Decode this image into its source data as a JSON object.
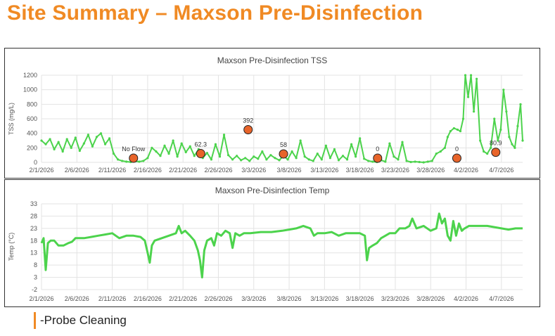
{
  "page": {
    "title": "Site Summary – Maxson Pre-Disinfection",
    "legend_text": "-Probe Cleaning"
  },
  "colors": {
    "title": "#F08A24",
    "series": "#4CD34C",
    "marker_fill": "#E8642A",
    "marker_stroke": "#222222",
    "grid": "#E3E3E3",
    "axis_text": "#555555"
  },
  "chart_data": [
    {
      "type": "scatter",
      "title": "Maxson Pre-Disinfection TSS",
      "xlabel": "",
      "ylabel": "TSS (mg/L)",
      "ylim": [
        0,
        1200
      ],
      "yticks": [
        0,
        200,
        400,
        600,
        800,
        1000,
        1200
      ],
      "xlim": [
        0,
        68
      ],
      "x_tick_labels": [
        "2/1/2026",
        "2/6/2026",
        "2/11/2026",
        "2/16/2026",
        "2/21/2026",
        "2/26/2026",
        "3/3/2026",
        "3/8/2026",
        "3/13/2026",
        "3/18/2026",
        "3/23/2026",
        "3/28/2026",
        "4/2/2026",
        "4/7/2026"
      ],
      "x_tick_days": [
        0,
        5,
        10,
        15,
        20,
        25,
        30,
        35,
        40,
        45,
        50,
        55,
        60,
        65
      ],
      "grid": true,
      "series": [
        {
          "name": "TSS",
          "points": [
            [
              0,
              300
            ],
            [
              0.6,
              250
            ],
            [
              1.2,
              320
            ],
            [
              1.8,
              180
            ],
            [
              2.4,
              280
            ],
            [
              3,
              150
            ],
            [
              3.6,
              320
            ],
            [
              4.2,
              200
            ],
            [
              4.8,
              340
            ],
            [
              5.4,
              160
            ],
            [
              6,
              260
            ],
            [
              6.6,
              380
            ],
            [
              7.2,
              220
            ],
            [
              7.8,
              350
            ],
            [
              8.4,
              400
            ],
            [
              9,
              250
            ],
            [
              9.6,
              330
            ],
            [
              10.2,
              120
            ],
            [
              10.8,
              40
            ],
            [
              11.4,
              20
            ],
            [
              12,
              10
            ],
            [
              12.6,
              5
            ],
            [
              13.2,
              15
            ],
            [
              13.8,
              10
            ],
            [
              14.4,
              20
            ],
            [
              15,
              60
            ],
            [
              15.6,
              200
            ],
            [
              16.2,
              150
            ],
            [
              16.8,
              90
            ],
            [
              17.4,
              230
            ],
            [
              18,
              120
            ],
            [
              18.6,
              300
            ],
            [
              19.2,
              80
            ],
            [
              19.8,
              260
            ],
            [
              20.4,
              140
            ],
            [
              21,
              220
            ],
            [
              21.6,
              90
            ],
            [
              22.2,
              180
            ],
            [
              22.8,
              60
            ],
            [
              23.4,
              130
            ],
            [
              24,
              40
            ],
            [
              24.6,
              250
            ],
            [
              25.2,
              80
            ],
            [
              25.8,
              380
            ],
            [
              26.4,
              100
            ],
            [
              27,
              40
            ],
            [
              27.6,
              90
            ],
            [
              28.2,
              30
            ],
            [
              28.8,
              60
            ],
            [
              29.4,
              20
            ],
            [
              30,
              80
            ],
            [
              30.6,
              50
            ],
            [
              31.2,
              150
            ],
            [
              31.8,
              40
            ],
            [
              32.4,
              100
            ],
            [
              33,
              60
            ],
            [
              33.6,
              30
            ],
            [
              34.2,
              90
            ],
            [
              34.8,
              40
            ],
            [
              35.4,
              150
            ],
            [
              36,
              60
            ],
            [
              36.6,
              300
            ],
            [
              37.2,
              80
            ],
            [
              37.8,
              40
            ],
            [
              38.4,
              20
            ],
            [
              39,
              120
            ],
            [
              39.6,
              40
            ],
            [
              40.2,
              230
            ],
            [
              40.8,
              60
            ],
            [
              41.4,
              180
            ],
            [
              42,
              30
            ],
            [
              42.6,
              90
            ],
            [
              43.2,
              40
            ],
            [
              43.8,
              250
            ],
            [
              44.4,
              80
            ],
            [
              45,
              330
            ],
            [
              45.6,
              50
            ],
            [
              46.2,
              20
            ],
            [
              46.8,
              10
            ],
            [
              47.4,
              5
            ],
            [
              48,
              30
            ],
            [
              48.6,
              10
            ],
            [
              49.2,
              260
            ],
            [
              49.8,
              80
            ],
            [
              50.4,
              40
            ],
            [
              51,
              280
            ],
            [
              51.6,
              20
            ],
            [
              52.2,
              5
            ],
            [
              52.8,
              10
            ],
            [
              53.4,
              5
            ],
            [
              54,
              0
            ],
            [
              54.6,
              10
            ],
            [
              55.2,
              20
            ],
            [
              55.8,
              120
            ],
            [
              56.4,
              150
            ],
            [
              57,
              200
            ],
            [
              57.4,
              350
            ],
            [
              57.8,
              430
            ],
            [
              58.3,
              470
            ],
            [
              58.8,
              450
            ],
            [
              59.2,
              430
            ],
            [
              59.6,
              600
            ],
            [
              59.9,
              1200
            ],
            [
              60.3,
              900
            ],
            [
              60.7,
              1200
            ],
            [
              61.1,
              700
            ],
            [
              61.5,
              1150
            ],
            [
              62,
              300
            ],
            [
              62.5,
              150
            ],
            [
              63,
              120
            ],
            [
              63.5,
              200
            ],
            [
              64,
              600
            ],
            [
              64.5,
              300
            ],
            [
              64.9,
              450
            ],
            [
              65.3,
              1000
            ],
            [
              65.7,
              700
            ],
            [
              66.1,
              350
            ],
            [
              66.5,
              250
            ],
            [
              66.9,
              200
            ],
            [
              67.3,
              500
            ],
            [
              67.7,
              800
            ],
            [
              68,
              300
            ]
          ]
        }
      ],
      "annotations": [
        {
          "label": "No Flow",
          "x": 13,
          "y": 0
        },
        {
          "label": "62.3",
          "x": 22.5,
          "y": 62.3
        },
        {
          "label": "392",
          "x": 29.2,
          "y": 392
        },
        {
          "label": "58",
          "x": 34.2,
          "y": 58
        },
        {
          "label": "0",
          "x": 47.5,
          "y": 0
        },
        {
          "label": "0",
          "x": 58.7,
          "y": 0
        },
        {
          "label": "80.9",
          "x": 64.2,
          "y": 80.9
        }
      ]
    },
    {
      "type": "line",
      "title": "Maxson Pre-Disinfection Temp",
      "xlabel": "",
      "ylabel": "Temp (°C)",
      "ylim": [
        -2,
        33
      ],
      "yticks": [
        -2,
        3,
        8,
        13,
        18,
        23,
        28,
        33
      ],
      "xlim": [
        0,
        68
      ],
      "x_tick_labels": [
        "2/1/2026",
        "2/6/2026",
        "2/11/2026",
        "2/16/2026",
        "2/21/2026",
        "2/26/2026",
        "3/3/2026",
        "3/8/2026",
        "3/13/2026",
        "3/18/2026",
        "3/23/2026",
        "3/28/2026",
        "4/2/2026",
        "4/7/2026"
      ],
      "x_tick_days": [
        0,
        5,
        10,
        15,
        20,
        25,
        30,
        35,
        40,
        45,
        50,
        55,
        60,
        65
      ],
      "grid": true,
      "series": [
        {
          "name": "Temp",
          "points": [
            [
              0,
              17
            ],
            [
              0.3,
              19
            ],
            [
              0.6,
              6
            ],
            [
              0.9,
              17
            ],
            [
              1.3,
              18
            ],
            [
              1.8,
              18
            ],
            [
              2.4,
              16
            ],
            [
              3.1,
              16
            ],
            [
              3.8,
              17
            ],
            [
              4.3,
              17.5
            ],
            [
              4.8,
              19
            ],
            [
              5.3,
              19
            ],
            [
              6,
              19
            ],
            [
              7,
              19.5
            ],
            [
              8,
              20
            ],
            [
              9,
              20.5
            ],
            [
              10,
              21
            ],
            [
              11,
              19
            ],
            [
              12,
              20
            ],
            [
              13,
              20
            ],
            [
              14,
              19.5
            ],
            [
              14.6,
              18
            ],
            [
              15,
              13
            ],
            [
              15.3,
              9
            ],
            [
              15.6,
              16
            ],
            [
              16,
              18
            ],
            [
              17,
              19
            ],
            [
              18,
              20
            ],
            [
              19,
              21
            ],
            [
              19.4,
              24
            ],
            [
              19.8,
              21
            ],
            [
              20.3,
              22
            ],
            [
              21,
              20
            ],
            [
              21.6,
              18
            ],
            [
              22.1,
              14
            ],
            [
              22.4,
              10
            ],
            [
              22.7,
              3
            ],
            [
              23,
              14
            ],
            [
              23.4,
              18
            ],
            [
              24,
              19
            ],
            [
              24.4,
              16
            ],
            [
              24.8,
              21
            ],
            [
              25.4,
              20
            ],
            [
              26,
              22
            ],
            [
              26.6,
              21
            ],
            [
              27,
              15
            ],
            [
              27.4,
              21
            ],
            [
              28,
              20
            ],
            [
              28.6,
              21
            ],
            [
              29.5,
              21
            ],
            [
              31,
              21.5
            ],
            [
              32.5,
              21.5
            ],
            [
              34,
              22
            ],
            [
              35,
              22.5
            ],
            [
              36,
              23
            ],
            [
              37,
              24
            ],
            [
              38,
              23
            ],
            [
              38.5,
              20
            ],
            [
              39,
              21
            ],
            [
              40,
              21
            ],
            [
              41,
              21.5
            ],
            [
              42,
              20
            ],
            [
              43,
              21
            ],
            [
              44,
              21
            ],
            [
              45,
              21
            ],
            [
              45.7,
              20
            ],
            [
              46,
              10
            ],
            [
              46.3,
              15
            ],
            [
              46.8,
              16
            ],
            [
              47.4,
              17
            ],
            [
              48,
              19
            ],
            [
              48.6,
              20
            ],
            [
              49.2,
              21
            ],
            [
              50,
              21
            ],
            [
              50.6,
              23
            ],
            [
              51.4,
              23
            ],
            [
              52,
              24
            ],
            [
              52.4,
              27
            ],
            [
              53,
              23
            ],
            [
              54,
              24
            ],
            [
              55,
              22
            ],
            [
              55.8,
              23
            ],
            [
              56.2,
              29
            ],
            [
              56.6,
              25
            ],
            [
              57,
              27
            ],
            [
              57.4,
              20
            ],
            [
              57.8,
              18
            ],
            [
              58.2,
              26
            ],
            [
              58.6,
              20
            ],
            [
              59,
              25
            ],
            [
              59.4,
              22
            ],
            [
              59.8,
              23
            ],
            [
              60.4,
              24
            ],
            [
              61,
              24
            ],
            [
              62,
              24
            ],
            [
              63,
              24
            ],
            [
              64,
              23.5
            ],
            [
              65,
              23
            ],
            [
              66,
              22.5
            ],
            [
              67,
              23
            ],
            [
              68,
              23
            ]
          ]
        }
      ]
    }
  ]
}
